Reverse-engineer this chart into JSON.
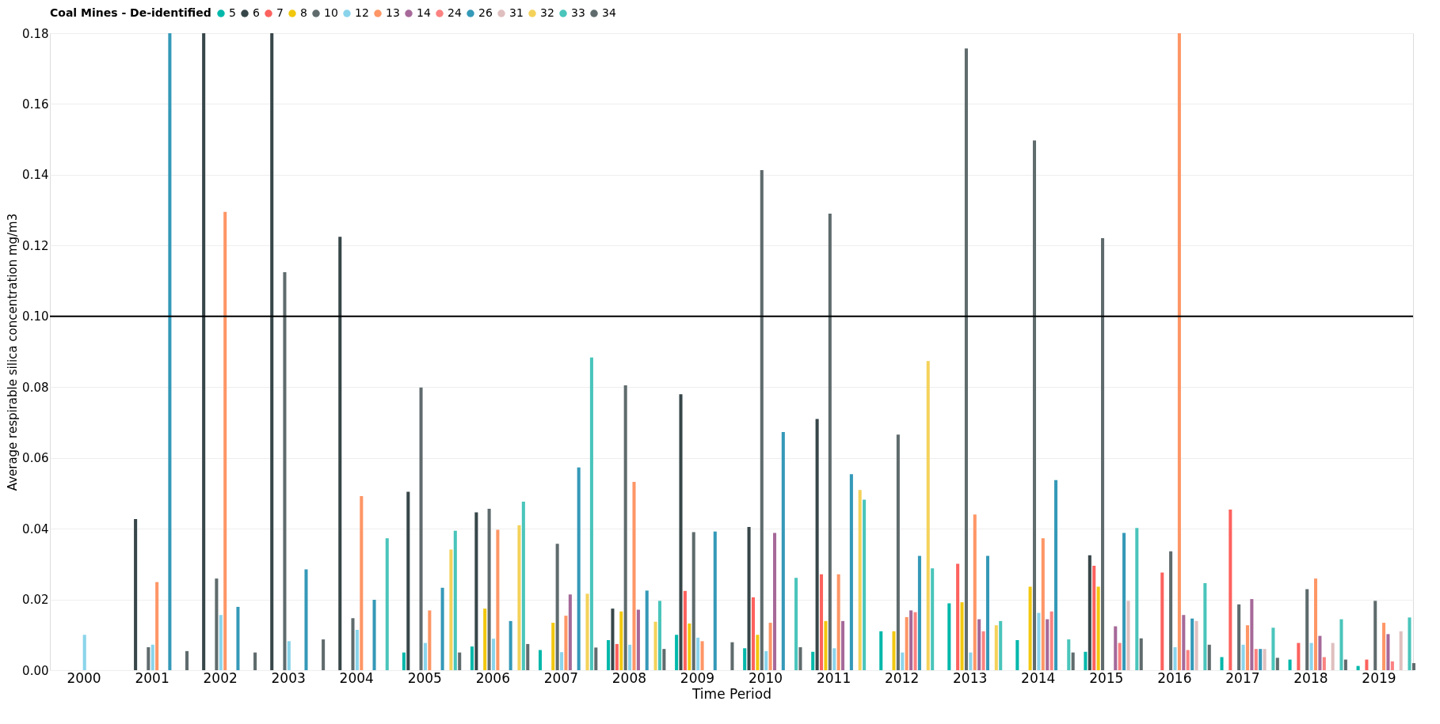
{
  "chart_data": {
    "type": "bar",
    "xlabel": "Time Period",
    "ylabel": "Average respirable silica concentration mg/m3",
    "legend_title": "Coal Mines - De-identified",
    "legend": "top",
    "grid": "y",
    "categories": [
      "2000",
      "2001",
      "2002",
      "2003",
      "2004",
      "2005",
      "2006",
      "2007",
      "2008",
      "2009",
      "2010",
      "2011",
      "2012",
      "2013",
      "2014",
      "2015",
      "2016",
      "2017",
      "2018",
      "2019"
    ],
    "ylim": [
      0,
      0.18
    ],
    "yticks": [
      {
        "value": 0,
        "label": "0.00"
      },
      {
        "value": 0.02,
        "label": "0.02"
      },
      {
        "value": 0.04,
        "label": "0.04"
      },
      {
        "value": 0.06,
        "label": "0.06"
      },
      {
        "value": 0.08,
        "label": "0.08"
      },
      {
        "value": 0.1,
        "label": "0.10"
      },
      {
        "value": 0.12,
        "label": "0.12"
      },
      {
        "value": 0.14,
        "label": "0.14"
      },
      {
        "value": 0.16,
        "label": "0.16"
      },
      {
        "value": 0.18,
        "label": "0.18"
      }
    ],
    "ref_lines": [
      {
        "axis": "y",
        "value": 0.1,
        "color": "#000000"
      }
    ],
    "series": [
      {
        "name": "5",
        "color": "#01b8aa",
        "values": [
          null,
          null,
          null,
          null,
          null,
          0.005,
          0.0067,
          0.0057,
          0.0085,
          0.01,
          0.0062,
          0.0052,
          0.011,
          0.0189,
          0.0085,
          0.0052,
          null,
          0.0037,
          0.003,
          0.0012
        ]
      },
      {
        "name": "6",
        "color": "#374649",
        "values": [
          null,
          0.0427,
          0.18,
          0.18,
          0.1225,
          0.0504,
          0.0446,
          null,
          0.0174,
          0.078,
          0.0405,
          0.071,
          null,
          null,
          null,
          0.0325,
          null,
          null,
          null,
          null
        ]
      },
      {
        "name": "7",
        "color": "#fd625e",
        "values": [
          null,
          null,
          null,
          null,
          null,
          null,
          null,
          null,
          0.0074,
          0.0224,
          0.0206,
          0.0271,
          null,
          0.0301,
          null,
          0.0295,
          0.0276,
          0.0454,
          0.0077,
          0.003
        ]
      },
      {
        "name": "8",
        "color": "#f2c80f",
        "values": [
          null,
          null,
          null,
          null,
          null,
          null,
          0.0174,
          0.0134,
          0.0166,
          0.0132,
          0.01,
          0.0139,
          0.011,
          0.0192,
          0.0236,
          0.0236,
          null,
          null,
          null,
          null
        ]
      },
      {
        "name": "10",
        "color": "#5f6b6d",
        "values": [
          null,
          0.0065,
          0.0259,
          0.1125,
          0.0147,
          0.0799,
          0.0456,
          0.0357,
          0.0805,
          0.039,
          0.1413,
          0.129,
          0.0666,
          0.1757,
          0.1497,
          0.1221,
          0.0336,
          0.0186,
          0.0229,
          0.0196
        ]
      },
      {
        "name": "12",
        "color": "#8ad4eb",
        "values": [
          0.01,
          0.0072,
          0.0156,
          0.0082,
          0.0114,
          0.0077,
          0.0089,
          0.0051,
          0.0072,
          0.0092,
          0.0054,
          0.0062,
          0.005,
          0.005,
          0.0162,
          null,
          0.0065,
          0.0072,
          0.0077,
          null
        ]
      },
      {
        "name": "13",
        "color": "#fe9666",
        "values": [
          null,
          0.0249,
          0.1295,
          null,
          0.0492,
          0.0169,
          0.0397,
          0.0154,
          0.0532,
          0.0082,
          0.0134,
          0.0271,
          0.015,
          0.044,
          0.0373,
          null,
          0.18,
          0.0127,
          0.0259,
          0.0134
        ]
      },
      {
        "name": "14",
        "color": "#a66999",
        "values": [
          null,
          null,
          null,
          null,
          null,
          null,
          null,
          0.0214,
          0.0171,
          null,
          0.0388,
          0.0139,
          0.0169,
          0.0144,
          0.0144,
          0.0124,
          0.0156,
          0.0201,
          0.0097,
          0.0102
        ]
      },
      {
        "name": "24",
        "color": "#fb8281",
        "values": [
          null,
          null,
          null,
          null,
          null,
          null,
          null,
          null,
          null,
          null,
          null,
          null,
          0.0164,
          0.011,
          0.0166,
          0.0077,
          0.0057,
          0.006,
          0.0037,
          0.0025
        ]
      },
      {
        "name": "26",
        "color": "#3599b8",
        "values": [
          null,
          0.18,
          0.0179,
          0.0285,
          0.0199,
          0.0233,
          0.0139,
          0.0573,
          0.0225,
          0.0392,
          0.0673,
          0.0554,
          0.0323,
          0.0323,
          0.0537,
          0.0388,
          0.0146,
          0.006,
          null,
          null
        ]
      },
      {
        "name": "31",
        "color": "#dfbfbf",
        "values": [
          null,
          null,
          null,
          null,
          null,
          null,
          null,
          null,
          null,
          null,
          null,
          null,
          null,
          null,
          null,
          0.0196,
          0.0139,
          0.006,
          0.0077,
          0.011
        ]
      },
      {
        "name": "32",
        "color": "#f4d25a",
        "values": [
          null,
          null,
          null,
          null,
          null,
          0.0341,
          0.041,
          0.0216,
          0.0137,
          null,
          null,
          0.0509,
          0.0874,
          0.0127,
          null,
          null,
          null,
          null,
          null,
          null
        ]
      },
      {
        "name": "33",
        "color": "#4ac5bb",
        "values": [
          null,
          null,
          null,
          null,
          0.0373,
          0.0394,
          0.0476,
          0.0884,
          0.0196,
          null,
          0.0261,
          0.0482,
          0.0288,
          0.0139,
          0.0087,
          0.0402,
          0.0246,
          0.012,
          0.0144,
          0.0149
        ]
      },
      {
        "name": "34",
        "color": "#5f6b6d",
        "values": [
          null,
          0.0054,
          0.005,
          0.0087,
          null,
          0.005,
          0.0074,
          0.0064,
          0.006,
          0.0079,
          0.0065,
          null,
          null,
          null,
          0.005,
          0.009,
          0.0072,
          0.0035,
          0.003,
          0.002
        ]
      }
    ]
  }
}
